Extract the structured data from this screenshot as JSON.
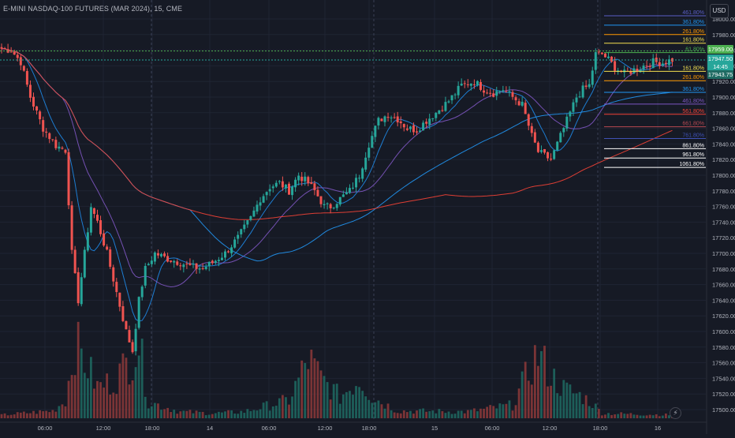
{
  "header": {
    "symbol_title": "E-MINI NASDAQ-100 FUTURES (MAR 2024), 15, CME",
    "currency": "USD"
  },
  "price_tags": {
    "high_tag": "17959.00",
    "last_price": "17947.50",
    "countdown": "14:45",
    "bid_tag": "17943.75"
  },
  "chart_data": {
    "type": "candlestick",
    "timeframe": "15",
    "ylim": [
      17490,
      18010
    ],
    "y_ticks": [
      17500,
      17520,
      17540,
      17560,
      17580,
      17600,
      17620,
      17640,
      17660,
      17680,
      17700,
      17720,
      17740,
      17760,
      17780,
      17800,
      17820,
      17840,
      17860,
      17880,
      17900,
      17920,
      17940,
      17960,
      17980,
      18000
    ],
    "x_ticks": [
      "06:00",
      "12:00",
      "18:00",
      "14",
      "06:00",
      "12:00",
      "18:00",
      "15",
      "06:00",
      "12:00",
      "18:00",
      "16"
    ],
    "session_breaks_after_ticks": [
      "18:00",
      "18:00",
      "18:00"
    ],
    "fibonacci_levels": [
      {
        "label": "461.80%",
        "price": 18004,
        "color": "#5b5fc7"
      },
      {
        "label": "361.80%",
        "price": 17992,
        "color": "#2196f3"
      },
      {
        "label": "261.80%",
        "price": 17980,
        "color": "#ff9800"
      },
      {
        "label": "161.80%",
        "price": 17969,
        "color": "#f5e050"
      },
      {
        "label": "61.80%",
        "price": 17957,
        "color": "#4caf50"
      },
      {
        "label": "161.80%",
        "price": 17933,
        "color": "#f5e050"
      },
      {
        "label": "261.80%",
        "price": 17921,
        "color": "#ff9800"
      },
      {
        "label": "361.80%",
        "price": 17906,
        "color": "#2196f3"
      },
      {
        "label": "461.80%",
        "price": 17891,
        "color": "#7e57c2"
      },
      {
        "label": "561.80%",
        "price": 17878,
        "color": "#f44336"
      },
      {
        "label": "661.80%",
        "price": 17862,
        "color": "#b74951"
      },
      {
        "label": "761.80%",
        "price": 17847,
        "color": "#3f51b5"
      },
      {
        "label": "861.80%",
        "price": 17834,
        "color": "#ffffff"
      },
      {
        "label": "961.80%",
        "price": 17822,
        "color": "#ffffff"
      },
      {
        "label": "1061.80%",
        "price": 17810,
        "color": "#ffffff"
      }
    ],
    "close_path": [
      [
        0,
        17962
      ],
      [
        3,
        17960
      ],
      [
        6,
        17945
      ],
      [
        9,
        17900
      ],
      [
        13,
        17860
      ],
      [
        17,
        17838
      ],
      [
        20,
        17832
      ],
      [
        22,
        17700
      ],
      [
        24,
        17640
      ],
      [
        26,
        17700
      ],
      [
        28,
        17760
      ],
      [
        30,
        17740
      ],
      [
        33,
        17700
      ],
      [
        36,
        17650
      ],
      [
        39,
        17600
      ],
      [
        41,
        17575
      ],
      [
        43,
        17640
      ],
      [
        45,
        17680
      ],
      [
        48,
        17700
      ],
      [
        52,
        17693
      ],
      [
        56,
        17688
      ],
      [
        60,
        17682
      ],
      [
        63,
        17681
      ],
      [
        66,
        17688
      ],
      [
        70,
        17700
      ],
      [
        74,
        17720
      ],
      [
        78,
        17745
      ],
      [
        81,
        17770
      ],
      [
        84,
        17785
      ],
      [
        87,
        17790
      ],
      [
        90,
        17780
      ],
      [
        93,
        17800
      ],
      [
        96,
        17790
      ],
      [
        98,
        17780
      ],
      [
        101,
        17760
      ],
      [
        103,
        17760
      ],
      [
        106,
        17770
      ],
      [
        109,
        17780
      ],
      [
        112,
        17800
      ],
      [
        115,
        17840
      ],
      [
        118,
        17870
      ],
      [
        121,
        17878
      ],
      [
        124,
        17872
      ],
      [
        127,
        17860
      ],
      [
        130,
        17858
      ],
      [
        133,
        17870
      ],
      [
        136,
        17880
      ],
      [
        140,
        17895
      ],
      [
        144,
        17915
      ],
      [
        148,
        17920
      ],
      [
        151,
        17910
      ],
      [
        154,
        17905
      ],
      [
        157,
        17910
      ],
      [
        160,
        17900
      ],
      [
        163,
        17890
      ],
      [
        166,
        17850
      ],
      [
        168,
        17830
      ],
      [
        170,
        17825
      ],
      [
        172,
        17820
      ],
      [
        174,
        17840
      ],
      [
        176,
        17860
      ],
      [
        178,
        17880
      ],
      [
        180,
        17900
      ],
      [
        182,
        17910
      ],
      [
        184,
        17915
      ],
      [
        186,
        17955
      ],
      [
        188,
        17955
      ],
      [
        190,
        17948
      ],
      [
        192,
        17938
      ],
      [
        195,
        17930
      ],
      [
        198,
        17935
      ],
      [
        201,
        17940
      ],
      [
        204,
        17945
      ],
      [
        207,
        17944
      ],
      [
        210,
        17948
      ]
    ],
    "volume_path": [
      [
        0,
        4
      ],
      [
        16,
        9
      ],
      [
        20,
        22
      ],
      [
        23,
        90
      ],
      [
        26,
        70
      ],
      [
        30,
        38
      ],
      [
        35,
        45
      ],
      [
        40,
        70
      ],
      [
        43,
        92
      ],
      [
        46,
        20
      ],
      [
        56,
        8
      ],
      [
        66,
        6
      ],
      [
        76,
        8
      ],
      [
        90,
        22
      ],
      [
        96,
        72
      ],
      [
        100,
        48
      ],
      [
        106,
        26
      ],
      [
        112,
        48
      ],
      [
        116,
        26
      ],
      [
        124,
        9
      ],
      [
        146,
        8
      ],
      [
        160,
        16
      ],
      [
        166,
        65
      ],
      [
        168,
        78
      ],
      [
        172,
        52
      ],
      [
        176,
        36
      ],
      [
        182,
        26
      ],
      [
        185,
        18
      ],
      [
        188,
        6
      ],
      [
        210,
        4
      ]
    ],
    "moving_averages": [
      {
        "name": "ma-fast",
        "color": "#1e88e5",
        "period": 8
      },
      {
        "name": "ma-mid",
        "color": "#7e57c2",
        "period": 20
      },
      {
        "name": "ma-slow",
        "color": "#2196f3",
        "period": 60
      },
      {
        "name": "ma-long",
        "color": "#f44336",
        "period": 140
      }
    ],
    "colors": {
      "up": "#26a69a",
      "down": "#ef5350",
      "background": "#161a25",
      "grid": "#1f2433"
    }
  }
}
